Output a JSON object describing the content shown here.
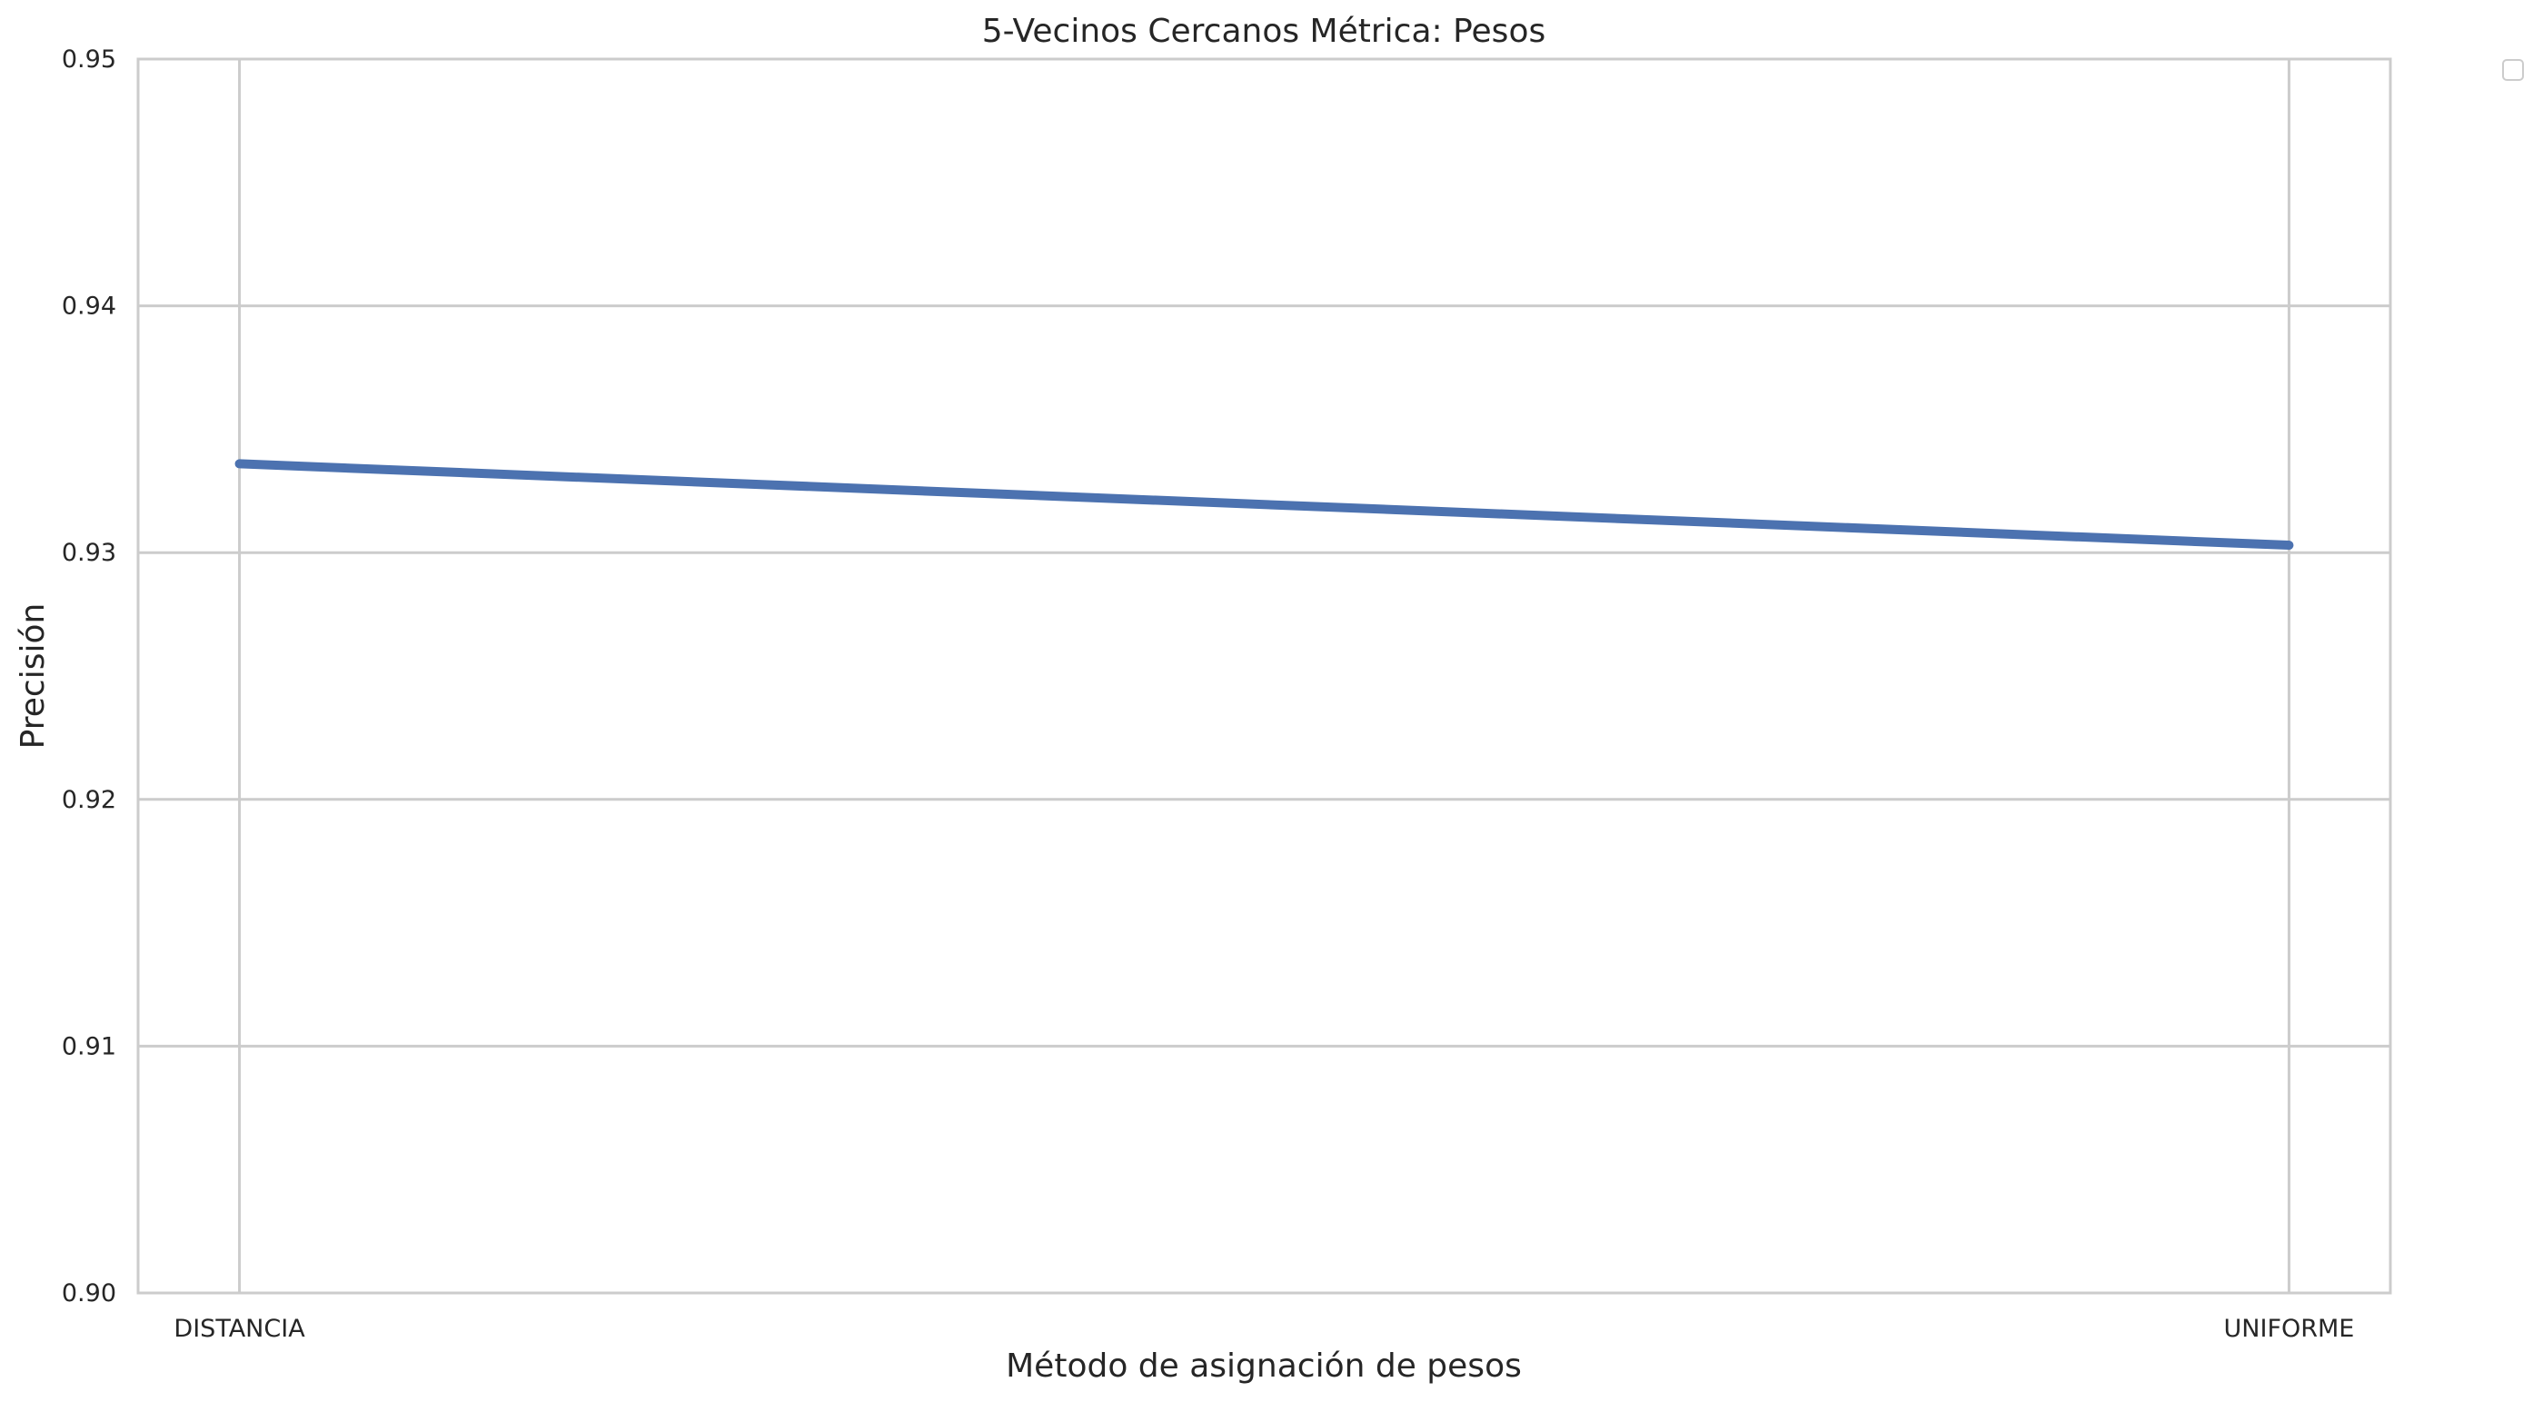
{
  "chart_data": {
    "type": "line",
    "title": "5-Vecinos Cercanos Métrica: Pesos",
    "xlabel": "Método de asignación de pesos",
    "ylabel": "Precisión",
    "categories": [
      "DISTANCIA",
      "UNIFORME"
    ],
    "series": [
      {
        "values": [
          0.9336,
          0.9303
        ],
        "color": "#4c72b0"
      }
    ],
    "ylim": [
      0.9,
      0.95
    ],
    "yticks": [
      0.9,
      0.91,
      0.92,
      0.93,
      0.94,
      0.95
    ],
    "ytick_labels": [
      "0.90",
      "0.91",
      "0.92",
      "0.93",
      "0.94",
      "0.95"
    ],
    "grid": true,
    "legend": "upper-right, empty",
    "colors": {
      "grid": "#cccccc",
      "background": "#ffffff",
      "text": "#262626"
    }
  }
}
